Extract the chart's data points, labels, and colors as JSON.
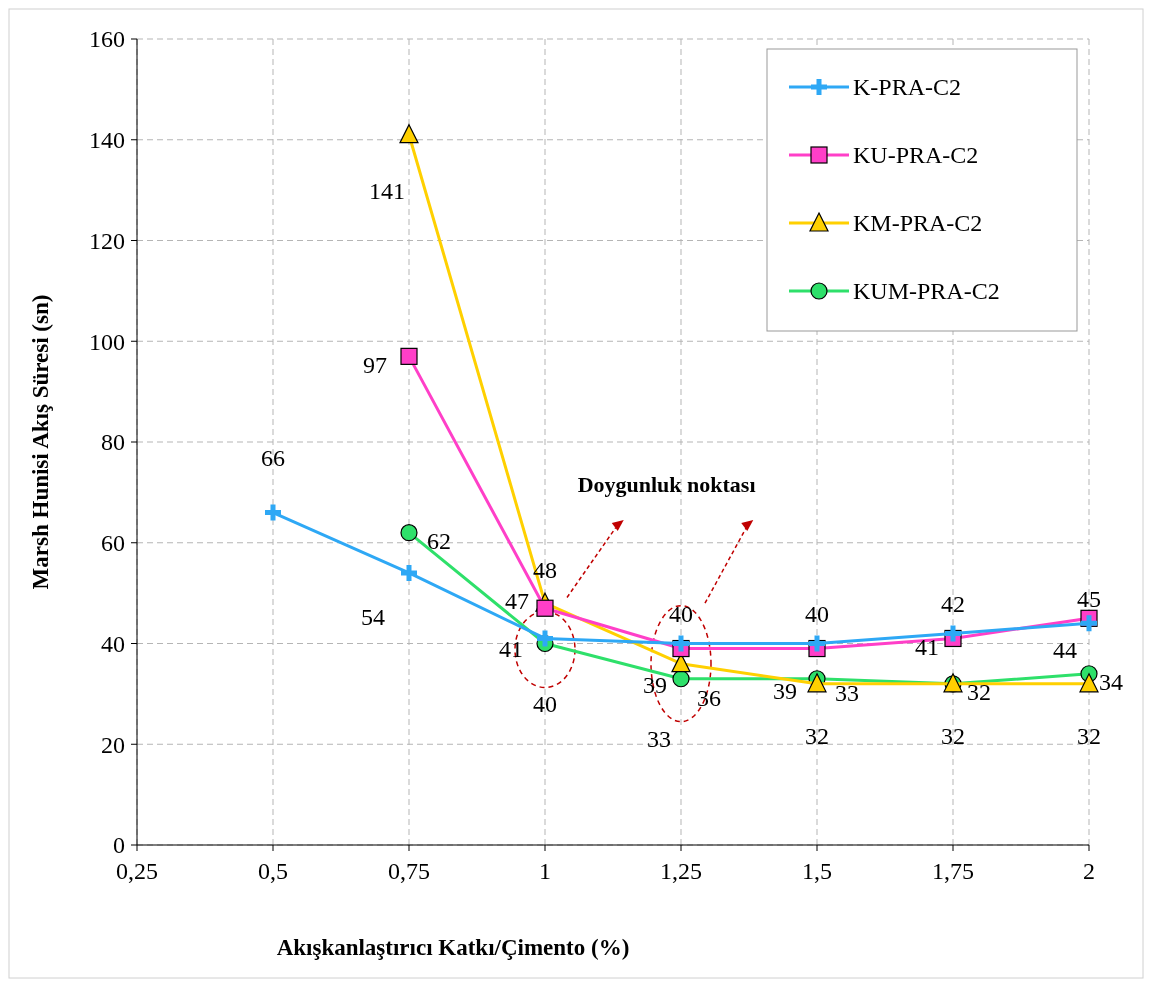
{
  "chart_data": {
    "type": "line",
    "xlabel": "Akışkanlaştırıcı Katkı/Çimento (%)",
    "ylabel": "Marsh Hunisi Akış Süresi (sn)",
    "xlim": [
      0.25,
      2
    ],
    "xticks": [
      {
        "value": 0.25,
        "label": "0,25"
      },
      {
        "value": 0.5,
        "label": "0,5"
      },
      {
        "value": 0.75,
        "label": "0,75"
      },
      1,
      {
        "value": 1.25,
        "label": "1,25"
      },
      {
        "value": 1.5,
        "label": "1,5"
      },
      {
        "value": 1.75,
        "label": "1,75"
      },
      2
    ],
    "ylim": [
      0,
      160
    ],
    "yticks": [
      0,
      20,
      40,
      60,
      80,
      100,
      120,
      140,
      160
    ],
    "grid": true,
    "legend": "top right",
    "line_style": "solid",
    "data_labels": true,
    "annotations": [
      "Doygunluk noktası"
    ],
    "series": [
      {
        "name": "K-PRA-C2",
        "color": "#2ea8f5",
        "marker": "cross",
        "x": [
          0.5,
          0.75,
          1,
          1.25,
          1.5,
          1.75,
          2
        ],
        "values": [
          66,
          54,
          41,
          40,
          40,
          42,
          44
        ]
      },
      {
        "name": "KU-PRA-C2",
        "color": "#ff3fc8",
        "marker": "square",
        "x": [
          0.75,
          1,
          1.25,
          1.5,
          1.75,
          2
        ],
        "values": [
          97,
          47,
          39,
          39,
          41,
          45
        ]
      },
      {
        "name": "KM-PRA-C2",
        "color": "#ffd000",
        "marker": "triangle",
        "x": [
          0.75,
          1,
          1.25,
          1.5,
          1.75,
          2
        ],
        "values": [
          141,
          48,
          36,
          32,
          32,
          32
        ]
      },
      {
        "name": "KUM-PRA-C2",
        "color": "#2ee06a",
        "marker": "circle",
        "x": [
          0.75,
          1,
          1.25,
          1.5,
          1.75,
          2
        ],
        "values": [
          62,
          40,
          33,
          33,
          32,
          34
        ]
      }
    ]
  }
}
